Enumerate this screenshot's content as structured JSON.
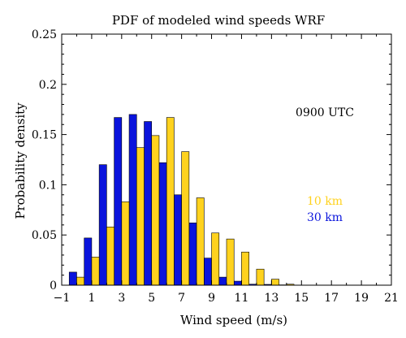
{
  "chart_data": {
    "type": "bar",
    "title": "PDF of modeled wind speeds WRF",
    "xlabel": "Wind speed (m/s)",
    "ylabel": "Probability density",
    "xlim": [
      -1,
      21
    ],
    "ylim": [
      0,
      0.25
    ],
    "x_ticks": [
      -1,
      1,
      3,
      5,
      7,
      9,
      11,
      13,
      15,
      17,
      19,
      21
    ],
    "y_ticks": [
      0,
      0.05,
      0.1,
      0.15,
      0.2,
      0.25
    ],
    "x_tick_labels": [
      "−1",
      "1",
      "3",
      "5",
      "7",
      "9",
      "11",
      "13",
      "15",
      "17",
      "19",
      "21"
    ],
    "y_tick_labels": [
      "0",
      "0.05",
      "0.1",
      "0.15",
      "0.2",
      "0.25"
    ],
    "annotation": "0900 UTC",
    "grid": false,
    "legend_position": "right",
    "bin_centers": [
      0,
      1,
      2,
      3,
      4,
      5,
      6,
      7,
      8,
      9,
      10,
      11,
      12,
      13,
      14
    ],
    "series": [
      {
        "name": "30 km",
        "color": "#0a14dc",
        "values": [
          0.013,
          0.047,
          0.12,
          0.167,
          0.17,
          0.163,
          0.122,
          0.09,
          0.062,
          0.027,
          0.008,
          0.004,
          0.001,
          0.0008,
          0.0003
        ]
      },
      {
        "name": "10 km",
        "color": "#ffd21e",
        "values": [
          0.008,
          0.028,
          0.058,
          0.083,
          0.137,
          0.149,
          0.167,
          0.133,
          0.087,
          0.052,
          0.046,
          0.033,
          0.016,
          0.006,
          0.001
        ]
      }
    ]
  }
}
